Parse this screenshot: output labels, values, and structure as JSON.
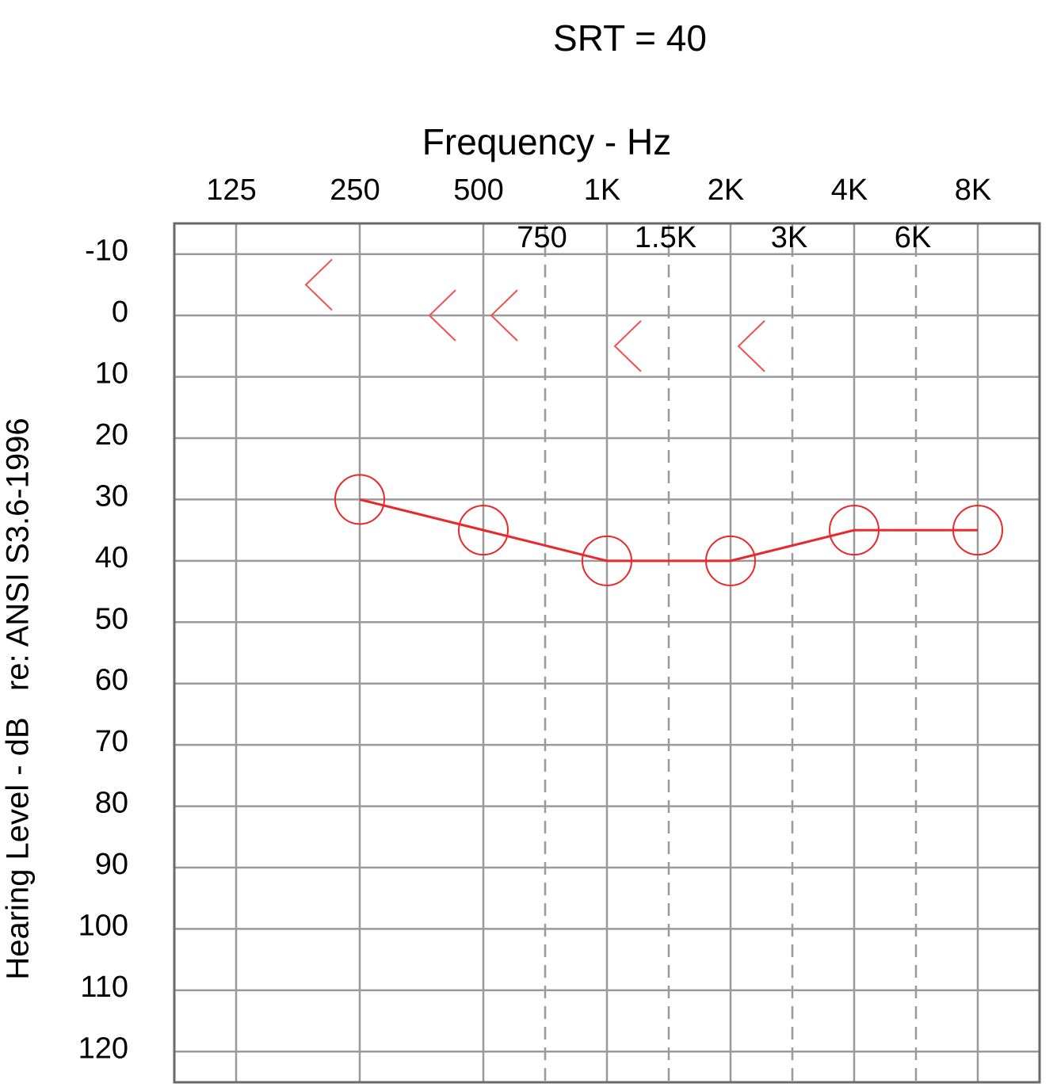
{
  "chart_data": {
    "type": "audiogram",
    "title": "SRT = 40",
    "x_label": "Frequency - Hz",
    "y_label": "Hearing Level - dB   re: ANSI S3.6-1996",
    "categories": [
      "125",
      null,
      "250",
      null,
      "500",
      "750",
      "1K",
      "1.5K",
      "2K",
      "3K",
      "4K",
      "6K",
      "8K"
    ],
    "ylim": [
      -15,
      125
    ],
    "y_inverted": true,
    "yticks": [
      -10,
      0,
      10,
      20,
      30,
      40,
      50,
      60,
      70,
      80,
      90,
      100,
      110,
      120
    ],
    "grid": true,
    "series": [
      {
        "marker": "circle",
        "connect": true,
        "color": "#e8282a",
        "x": [
          "250",
          "500",
          "1K",
          "2K",
          "4K",
          "8K"
        ],
        "values": [
          30,
          35,
          40,
          40,
          35,
          35
        ]
      },
      {
        "marker": "bracket-left",
        "connect": false,
        "color": "#f05050",
        "x": [
          "250",
          "500",
          "750",
          "1.5K",
          "3K"
        ],
        "values": [
          -5,
          0,
          0,
          5,
          5
        ]
      }
    ]
  }
}
